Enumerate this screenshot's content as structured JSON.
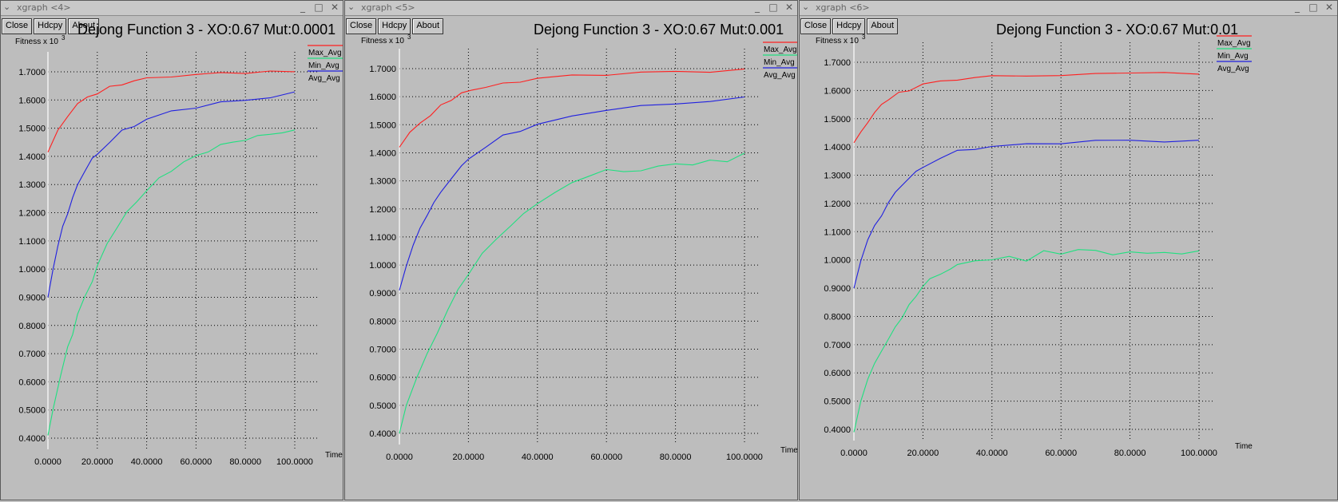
{
  "toolbar": {
    "close": "Close",
    "hdcpy": "Hdcpy",
    "about": "About"
  },
  "windows": [
    {
      "title_bar": "xgraph <4>",
      "chart_title": "Dejong Function 3 - XO:0.67 Mut:0.0001",
      "chart_data": {
        "type": "line",
        "title": "Dejong Function 3 - XO:0.67 Mut:0.0001",
        "ylabel": "Fitness x 10",
        "ylabel_exp": "3",
        "xlabel": "Time",
        "ylim": [
          0.4,
          1.7
        ],
        "xlim": [
          0,
          100
        ],
        "x_ticks": [
          "0.0000",
          "20.0000",
          "40.0000",
          "60.0000",
          "80.0000",
          "100.0000"
        ],
        "y_ticks": [
          "0.4000",
          "0.5000",
          "0.6000",
          "0.7000",
          "0.8000",
          "0.9000",
          "1.0000",
          "1.1000",
          "1.2000",
          "1.3000",
          "1.4000",
          "1.5000",
          "1.6000",
          "1.7000"
        ],
        "legend": "right",
        "grid": true,
        "series": [
          {
            "name": "Max_Avg",
            "color": "#ff2020",
            "x": [
              0,
              4,
              8,
              12,
              16,
              20,
              25,
              30,
              35,
              40,
              50,
              60,
              70,
              80,
              90,
              100
            ],
            "y": [
              1.415,
              1.49,
              1.545,
              1.585,
              1.61,
              1.625,
              1.645,
              1.655,
              1.67,
              1.675,
              1.685,
              1.69,
              1.695,
              1.698,
              1.7,
              1.7
            ]
          },
          {
            "name": "Min_Avg",
            "color": "#20e080",
            "x": [
              0,
              2,
              5,
              8,
              10,
              12,
              15,
              18,
              20,
              24,
              28,
              32,
              36,
              40,
              45,
              50,
              55,
              60,
              65,
              70,
              75,
              80,
              85,
              90,
              95,
              100
            ],
            "y": [
              0.41,
              0.5,
              0.62,
              0.72,
              0.77,
              0.84,
              0.9,
              0.96,
              1.01,
              1.09,
              1.15,
              1.2,
              1.24,
              1.28,
              1.32,
              1.35,
              1.38,
              1.4,
              1.42,
              1.44,
              1.45,
              1.46,
              1.47,
              1.48,
              1.485,
              1.49
            ]
          },
          {
            "name": "Avg_Avg",
            "color": "#2020e0",
            "x": [
              0,
              2,
              4,
              6,
              8,
              10,
              12,
              15,
              18,
              20,
              25,
              30,
              35,
              40,
              50,
              60,
              70,
              80,
              90,
              100
            ],
            "y": [
              0.9,
              1.0,
              1.08,
              1.15,
              1.2,
              1.25,
              1.3,
              1.35,
              1.39,
              1.41,
              1.45,
              1.49,
              1.51,
              1.53,
              1.56,
              1.575,
              1.59,
              1.6,
              1.61,
              1.625
            ]
          }
        ]
      }
    },
    {
      "title_bar": "xgraph <5>",
      "chart_title": "Dejong Function 3 - XO:0.67 Mut:0.001",
      "chart_data": {
        "type": "line",
        "title": "Dejong Function 3 - XO:0.67 Mut:0.001",
        "ylabel": "Fitness x 10",
        "ylabel_exp": "3",
        "xlabel": "Time",
        "ylim": [
          0.4,
          1.7
        ],
        "xlim": [
          0,
          100
        ],
        "x_ticks": [
          "0.0000",
          "20.0000",
          "40.0000",
          "60.0000",
          "80.0000",
          "100.0000"
        ],
        "y_ticks": [
          "0.4000",
          "0.5000",
          "0.6000",
          "0.7000",
          "0.8000",
          "0.9000",
          "1.0000",
          "1.1000",
          "1.2000",
          "1.3000",
          "1.4000",
          "1.5000",
          "1.6000",
          "1.7000"
        ],
        "legend": "right",
        "grid": true,
        "series": [
          {
            "name": "Max_Avg",
            "color": "#ff2020",
            "x": [
              0,
              3,
              6,
              9,
              12,
              15,
              18,
              21,
              25,
              30,
              35,
              40,
              50,
              60,
              70,
              80,
              90,
              100
            ],
            "y": [
              1.42,
              1.47,
              1.51,
              1.53,
              1.57,
              1.59,
              1.61,
              1.625,
              1.635,
              1.645,
              1.655,
              1.665,
              1.675,
              1.68,
              1.685,
              1.69,
              1.69,
              1.695
            ]
          },
          {
            "name": "Min_Avg",
            "color": "#20e080",
            "x": [
              0,
              2,
              5,
              8,
              11,
              14,
              17,
              20,
              24,
              28,
              32,
              36,
              40,
              45,
              50,
              55,
              60,
              65,
              70,
              75,
              80,
              85,
              90,
              95,
              100
            ],
            "y": [
              0.4,
              0.5,
              0.6,
              0.68,
              0.76,
              0.84,
              0.91,
              0.97,
              1.04,
              1.09,
              1.14,
              1.18,
              1.22,
              1.26,
              1.29,
              1.32,
              1.34,
              1.33,
              1.34,
              1.35,
              1.36,
              1.36,
              1.37,
              1.37,
              1.4
            ]
          },
          {
            "name": "Avg_Avg",
            "color": "#2020e0",
            "x": [
              0,
              2,
              4,
              6,
              8,
              10,
              12,
              15,
              18,
              20,
              25,
              30,
              35,
              40,
              50,
              60,
              70,
              80,
              90,
              100
            ],
            "y": [
              0.91,
              1.0,
              1.07,
              1.13,
              1.18,
              1.22,
              1.26,
              1.31,
              1.35,
              1.38,
              1.42,
              1.46,
              1.48,
              1.5,
              1.53,
              1.555,
              1.565,
              1.575,
              1.585,
              1.595
            ]
          }
        ]
      }
    },
    {
      "title_bar": "xgraph <6>",
      "chart_title": "Dejong Function 3 - XO:0.67 Mut:0.01",
      "chart_data": {
        "type": "line",
        "title": "Dejong Function 3 - XO:0.67 Mut:0.01",
        "ylabel": "Fitness x 10",
        "ylabel_exp": "3",
        "xlabel": "Time",
        "ylim": [
          0.4,
          1.7
        ],
        "xlim": [
          0,
          100
        ],
        "x_ticks": [
          "0.0000",
          "20.0000",
          "40.0000",
          "60.0000",
          "80.0000",
          "100.0000"
        ],
        "y_ticks": [
          "0.4000",
          "0.5000",
          "0.6000",
          "0.7000",
          "0.8000",
          "0.9000",
          "1.0000",
          "1.1000",
          "1.2000",
          "1.3000",
          "1.4000",
          "1.5000",
          "1.6000",
          "1.7000"
        ],
        "legend": "right",
        "grid": true,
        "series": [
          {
            "name": "Max_Avg",
            "color": "#ff2020",
            "x": [
              0,
              2,
              4,
              6,
              8,
              10,
              13,
              16,
              20,
              25,
              30,
              35,
              40,
              50,
              60,
              70,
              80,
              90,
              100
            ],
            "y": [
              1.415,
              1.45,
              1.49,
              1.52,
              1.55,
              1.57,
              1.59,
              1.6,
              1.625,
              1.63,
              1.64,
              1.645,
              1.65,
              1.655,
              1.65,
              1.66,
              1.665,
              1.66,
              1.66
            ]
          },
          {
            "name": "Min_Avg",
            "color": "#20e080",
            "x": [
              0,
              2,
              4,
              6,
              8,
              10,
              12,
              14,
              16,
              18,
              20,
              22,
              25,
              28,
              30,
              35,
              40,
              45,
              50,
              55,
              60,
              65,
              70,
              75,
              80,
              85,
              90,
              95,
              100
            ],
            "y": [
              0.39,
              0.5,
              0.58,
              0.63,
              0.68,
              0.72,
              0.76,
              0.8,
              0.84,
              0.87,
              0.91,
              0.93,
              0.95,
              0.97,
              0.98,
              1.0,
              1.0,
              1.01,
              1.0,
              1.03,
              1.02,
              1.04,
              1.03,
              1.02,
              1.03,
              1.02,
              1.03,
              1.02,
              1.03
            ]
          },
          {
            "name": "Avg_Avg",
            "color": "#2020e0",
            "x": [
              0,
              2,
              4,
              6,
              8,
              10,
              12,
              15,
              18,
              20,
              25,
              30,
              35,
              40,
              50,
              60,
              70,
              80,
              90,
              100
            ],
            "y": [
              0.9,
              1.0,
              1.07,
              1.12,
              1.16,
              1.2,
              1.24,
              1.28,
              1.31,
              1.33,
              1.36,
              1.385,
              1.395,
              1.4,
              1.41,
              1.415,
              1.42,
              1.425,
              1.42,
              1.42
            ]
          }
        ]
      }
    }
  ]
}
